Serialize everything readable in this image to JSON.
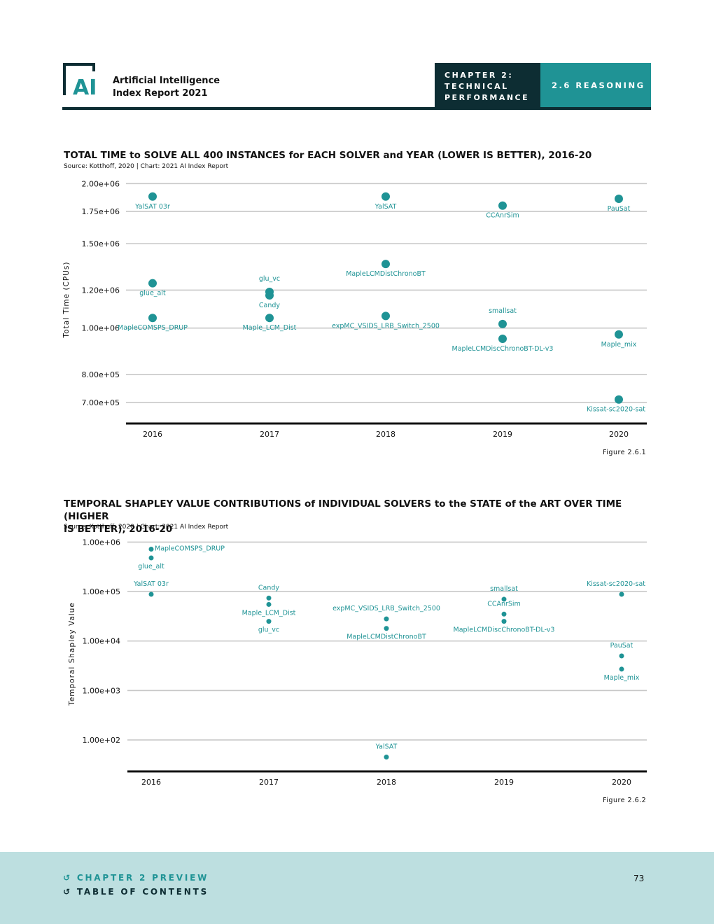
{
  "header": {
    "logo_text": "AI",
    "report_line1": "Artificial Intelligence",
    "report_line2": "Index Report 2021",
    "chapter_line1": "CHAPTER 2:",
    "chapter_line2": "TECHNICAL",
    "chapter_line3": "PERFORMANCE",
    "section": "2.6 REASONING",
    "dark_color": "#0d2d33",
    "accent_color": "#1f9395"
  },
  "charts": {
    "chart1_title": "TOTAL TIME to SOLVE ALL 400 INSTANCES for EACH SOLVER and YEAR (LOWER IS BETTER), 2016-20",
    "chart1_source": "Source: Kotthoff, 2020 | Chart: 2021 AI Index Report",
    "chart1_figure": "Figure 2.6.1",
    "chart2_title_line1": "TEMPORAL SHAPLEY VALUE CONTRIBUTIONS of INDIVIDUAL SOLVERS to the STATE of the ART OVER TIME (HIGHER",
    "chart2_title_line2": "IS BETTER), 2016-20",
    "chart2_source": "Source: Kotthoff, 2020 | Chart: 2021 AI Index Report",
    "chart2_figure": "Figure 2.6.2"
  },
  "chart_data": [
    {
      "type": "scatter",
      "title": "TOTAL TIME to SOLVE ALL 400 INSTANCES for EACH SOLVER and YEAR (LOWER IS BETTER), 2016-20",
      "xlabel": "",
      "ylabel": "Total Time (CPUs)",
      "y_scale": "log",
      "ylim": [
        650000,
        2050000
      ],
      "categories": [
        "2016",
        "2017",
        "2018",
        "2019",
        "2020"
      ],
      "y_ticks": [
        700000,
        800000,
        1000000,
        1200000,
        1500000,
        1750000,
        2000000
      ],
      "y_tick_labels": [
        "7.00e+05",
        "8.00e+05",
        "1.00e+06",
        "1.20e+06",
        "1.50e+06",
        "1.75e+06",
        "2.00e+06"
      ],
      "points": [
        {
          "label": "YalSAT 03r",
          "year": "2016",
          "value": 1880000,
          "label_pos": "below"
        },
        {
          "label": "glue_alt",
          "year": "2016",
          "value": 1240000,
          "label_pos": "below"
        },
        {
          "label": "MapleCOMSPS_DRUP",
          "year": "2016",
          "value": 1050000,
          "label_pos": "below"
        },
        {
          "label": "glu_vc",
          "year": "2017",
          "value": 1190000,
          "label_pos": "above"
        },
        {
          "label": "Candy",
          "year": "2017",
          "value": 1170000,
          "label_pos": "below"
        },
        {
          "label": "Maple_LCM_Dist",
          "year": "2017",
          "value": 1050000,
          "label_pos": "below"
        },
        {
          "label": "YalSAT",
          "year": "2018",
          "value": 1880000,
          "label_pos": "below"
        },
        {
          "label": "MapleLCMDistChronoBT",
          "year": "2018",
          "value": 1360000,
          "label_pos": "below"
        },
        {
          "label": "expMC_VSIDS_LRB_Switch_2500",
          "year": "2018",
          "value": 1060000,
          "label_pos": "below"
        },
        {
          "label": "CCAnrSim",
          "year": "2019",
          "value": 1800000,
          "label_pos": "below"
        },
        {
          "label": "smallsat",
          "year": "2019",
          "value": 1020000,
          "label_pos": "above"
        },
        {
          "label": "MapleLCMDiscChronoBT-DL-v3",
          "year": "2019",
          "value": 950000,
          "label_pos": "below"
        },
        {
          "label": "PauSat",
          "year": "2020",
          "value": 1860000,
          "label_pos": "below"
        },
        {
          "label": "Maple_mix",
          "year": "2020",
          "value": 970000,
          "label_pos": "below"
        },
        {
          "label": "Kissat-sc2020-sat",
          "year": "2020",
          "value": 710000,
          "label_pos": "below"
        }
      ],
      "color": "#1f9395"
    },
    {
      "type": "scatter",
      "title": "TEMPORAL SHAPLEY VALUE CONTRIBUTIONS of INDIVIDUAL SOLVERS to the STATE of the ART OVER TIME (HIGHER IS BETTER), 2016-20",
      "xlabel": "",
      "ylabel": "Temporal Shapley Value",
      "y_scale": "log",
      "ylim": [
        30,
        1500000
      ],
      "categories": [
        "2016",
        "2017",
        "2018",
        "2019",
        "2020"
      ],
      "y_ticks": [
        100,
        1000,
        10000,
        100000,
        1000000
      ],
      "y_tick_labels": [
        "1.00e+02",
        "1.00e+03",
        "1.00e+04",
        "1.00e+05",
        "1.00e+06"
      ],
      "points": [
        {
          "label": "MapleCOMSPS_DRUP",
          "year": "2016",
          "value": 720000,
          "label_pos": "right"
        },
        {
          "label": "glue_alt",
          "year": "2016",
          "value": 480000,
          "label_pos": "below"
        },
        {
          "label": "YalSAT 03r",
          "year": "2016",
          "value": 88000,
          "label_pos": "above"
        },
        {
          "label": "Candy",
          "year": "2017",
          "value": 74000,
          "label_pos": "above"
        },
        {
          "label": "Maple_LCM_Dist",
          "year": "2017",
          "value": 55000,
          "label_pos": "below"
        },
        {
          "label": "glu_vc",
          "year": "2017",
          "value": 25000,
          "label_pos": "below"
        },
        {
          "label": "expMC_VSIDS_LRB_Switch_2500",
          "year": "2018",
          "value": 28000,
          "label_pos": "above"
        },
        {
          "label": "MapleLCMDistChronoBT",
          "year": "2018",
          "value": 18000,
          "label_pos": "below"
        },
        {
          "label": "YalSAT",
          "year": "2018",
          "value": 45,
          "label_pos": "above"
        },
        {
          "label": "smallsat",
          "year": "2019",
          "value": 70000,
          "label_pos": "above"
        },
        {
          "label": "CCAnrSim",
          "year": "2019",
          "value": 35000,
          "label_pos": "above"
        },
        {
          "label": "MapleLCMDiscChronoBT-DL-v3",
          "year": "2019",
          "value": 25000,
          "label_pos": "below"
        },
        {
          "label": "Kissat-sc2020-sat",
          "year": "2020",
          "value": 88000,
          "label_pos": "above"
        },
        {
          "label": "PauSat",
          "year": "2020",
          "value": 5000,
          "label_pos": "above"
        },
        {
          "label": "Maple_mix",
          "year": "2020",
          "value": 2700,
          "label_pos": "below"
        }
      ],
      "color": "#1f9395"
    }
  ],
  "footer": {
    "link1": "CHAPTER 2 PREVIEW",
    "link2": "TABLE OF CONTENTS",
    "page_number": "73",
    "background": "#bddfe0"
  }
}
